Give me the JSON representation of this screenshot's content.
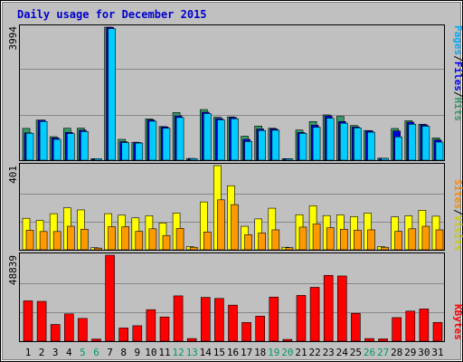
{
  "title": "Daily usage for December 2015",
  "colors": {
    "background": "#c0c0c0",
    "plot": "#c0c0c0",
    "grid": "#888888",
    "hits_front": "#339966",
    "hits_back": "#226644",
    "files": "#0000dd",
    "pages": "#00ccff",
    "visits": "#ffff00",
    "sites": "#ff9900",
    "kbytes": "#ff0000",
    "weekday_label": "#000000",
    "weekend_label": "#009966",
    "side_pages": "#00aaff",
    "side_files": "#0000ff",
    "side_hits": "#339966",
    "side_sites": "#ff8800",
    "side_visits": "#cccc00",
    "side_kbytes": "#ff0000"
  },
  "side_labels": {
    "top": [
      "Pages",
      "Files",
      "Hits"
    ],
    "middle": [
      "Sites",
      "Visits"
    ],
    "bottom": [
      "KBytes"
    ],
    "separator": "/"
  },
  "chart_data": {
    "type": "bar",
    "days": [
      "1",
      "2",
      "3",
      "4",
      "5",
      "6",
      "7",
      "8",
      "9",
      "10",
      "11",
      "12",
      "13",
      "14",
      "15",
      "16",
      "17",
      "18",
      "19",
      "20",
      "21",
      "22",
      "23",
      "24",
      "25",
      "26",
      "27",
      "28",
      "29",
      "30",
      "31"
    ],
    "weekend_days": [
      "5",
      "6",
      "12",
      "13",
      "19",
      "20",
      "26",
      "27"
    ],
    "panels": [
      {
        "name": "usage",
        "ymax_label": "3994",
        "ymax": 3994,
        "series": [
          {
            "name": "Hits",
            "values": [
              955,
              1203,
              705,
              958,
              962,
              45,
              3994,
              625,
              540,
              1240,
              1010,
              1430,
              50,
              1520,
              1290,
              1300,
              720,
              1025,
              960,
              45,
              905,
              1160,
              1360,
              1315,
              1040,
              890,
              58,
              950,
              1185,
              1080,
              670
            ]
          },
          {
            "name": "Files",
            "values": [
              820,
              1203,
              670,
              835,
              900,
              45,
              3990,
              555,
              530,
              1210,
              1000,
              1330,
              50,
              1440,
              1250,
              1280,
              625,
              935,
              940,
              45,
              830,
              1050,
              1330,
              1160,
              1000,
              880,
              58,
              875,
              1140,
              1060,
              610
            ]
          },
          {
            "name": "Pages",
            "values": [
              810,
              1160,
              625,
              800,
              860,
              45,
              3950,
              530,
              515,
              1170,
              960,
              1280,
              45,
              1400,
              1210,
              1245,
              560,
              890,
              900,
              40,
              805,
              990,
              1260,
              1110,
              970,
              840,
              55,
              700,
              1080,
              1020,
              545
            ]
          }
        ]
      },
      {
        "name": "visitors",
        "ymax_label": "401",
        "ymax": 401,
        "series": [
          {
            "name": "Visits",
            "values": [
              150,
              140,
              172,
              200,
              190,
              10,
              172,
              165,
              152,
              162,
              128,
              175,
              15,
              228,
              401,
              305,
              112,
              147,
              198,
              12,
              167,
              210,
              163,
              166,
              158,
              175,
              15,
              157,
              162,
              188,
              160
            ]
          },
          {
            "name": "Sites",
            "values": [
              93,
              87,
              87,
              112,
              98,
              8,
              110,
              110,
              88,
              100,
              68,
              102,
              12,
              85,
              238,
              215,
              72,
              80,
              95,
              10,
              108,
              123,
              105,
              98,
              93,
              95,
              12,
              88,
              100,
              112,
              95
            ]
          }
        ]
      },
      {
        "name": "kbytes",
        "ymax_label": "48839",
        "ymax": 48839,
        "series": [
          {
            "name": "KBytes",
            "values": [
              22920,
              22620,
              9500,
              15500,
              12930,
              1200,
              48839,
              7500,
              8790,
              17900,
              13770,
              25750,
              1500,
              24880,
              24270,
              20480,
              10650,
              14200,
              25070,
              1000,
              26000,
              30600,
              37390,
              37050,
              15820,
              1500,
              1300,
              13390,
              17070,
              18300,
              10650
            ]
          }
        ]
      }
    ]
  }
}
